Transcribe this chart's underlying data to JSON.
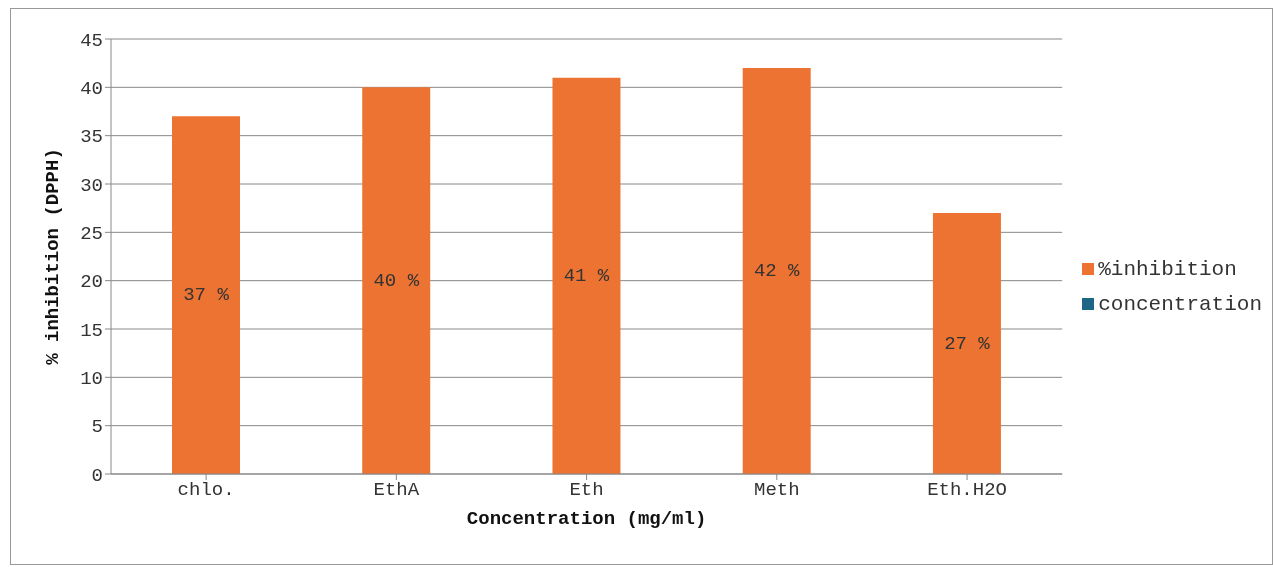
{
  "chart_data": {
    "type": "bar",
    "xlabel": "Concentration (mg/ml)",
    "ylabel": "% inhibition (DPPH)",
    "categories": [
      "chlo.",
      "EthA",
      "Eth",
      "Meth",
      "Eth.H2O"
    ],
    "series": [
      {
        "name": "%inhibition",
        "color": "#ed7332",
        "values": [
          37,
          40,
          41,
          42,
          27
        ],
        "value_labels": [
          "37 %",
          "40 %",
          "41 %",
          "42 %",
          "27 %"
        ]
      },
      {
        "name": "concentration",
        "color": "#1f6584",
        "values": [
          null,
          null,
          null,
          null,
          null
        ]
      }
    ],
    "ylim": [
      0,
      45
    ],
    "yticks": [
      0,
      5,
      10,
      15,
      20,
      25,
      30,
      35,
      40,
      45
    ],
    "grid": "y",
    "legend": "right"
  }
}
